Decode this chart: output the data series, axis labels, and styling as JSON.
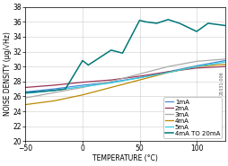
{
  "xlabel": "TEMPERATURE (°C)",
  "ylabel": "NOISE DENSITY (μg/√Hz)",
  "xlim": [
    -50,
    125
  ],
  "ylim": [
    20,
    38
  ],
  "xticks": [
    -50,
    0,
    50,
    100
  ],
  "yticks": [
    20,
    22,
    24,
    26,
    28,
    30,
    32,
    34,
    36,
    38
  ],
  "series": {
    "1mA": {
      "color": "#4488DD",
      "x": [
        -50,
        -25,
        0,
        25,
        50,
        75,
        100,
        125
      ],
      "y": [
        26.6,
        27.0,
        27.5,
        27.9,
        28.5,
        29.3,
        30.1,
        30.8
      ]
    },
    "2mA": {
      "color": "#993355",
      "x": [
        -50,
        -25,
        0,
        25,
        50,
        75,
        100,
        125
      ],
      "y": [
        27.2,
        27.5,
        27.9,
        28.2,
        28.7,
        29.3,
        29.8,
        30.0
      ]
    },
    "3mA": {
      "color": "#AAAAAA",
      "x": [
        -50,
        -25,
        0,
        25,
        50,
        75,
        100,
        125
      ],
      "y": [
        25.8,
        26.5,
        27.2,
        28.0,
        29.0,
        30.0,
        30.7,
        31.0
      ]
    },
    "4mA": {
      "color": "#BB8800",
      "x": [
        -50,
        -25,
        0,
        25,
        50,
        75,
        100,
        125
      ],
      "y": [
        24.9,
        25.4,
        26.2,
        27.2,
        28.2,
        29.2,
        30.0,
        30.3
      ]
    },
    "5mA": {
      "color": "#33CCDD",
      "x": [
        -50,
        -25,
        0,
        25,
        50,
        75,
        100,
        125
      ],
      "y": [
        26.4,
        26.8,
        27.3,
        27.8,
        28.5,
        29.2,
        30.0,
        30.6
      ]
    },
    "4mA TO 20mA": {
      "color": "#007777",
      "x": [
        -50,
        -40,
        -25,
        -15,
        0,
        5,
        15,
        25,
        35,
        50,
        55,
        65,
        75,
        85,
        100,
        110,
        125
      ],
      "y": [
        26.5,
        26.6,
        26.8,
        27.0,
        30.8,
        30.2,
        31.2,
        32.2,
        31.8,
        36.2,
        36.0,
        35.8,
        36.3,
        35.8,
        34.7,
        35.8,
        35.5
      ]
    }
  },
  "legend_order": [
    "1mA",
    "2mA",
    "3mA",
    "4mA",
    "5mA",
    "4mA TO 20mA"
  ],
  "bg_color": "#ffffff",
  "fontsize_axis_label": 5.5,
  "fontsize_tick": 5.5,
  "fontsize_legend": 5.0
}
